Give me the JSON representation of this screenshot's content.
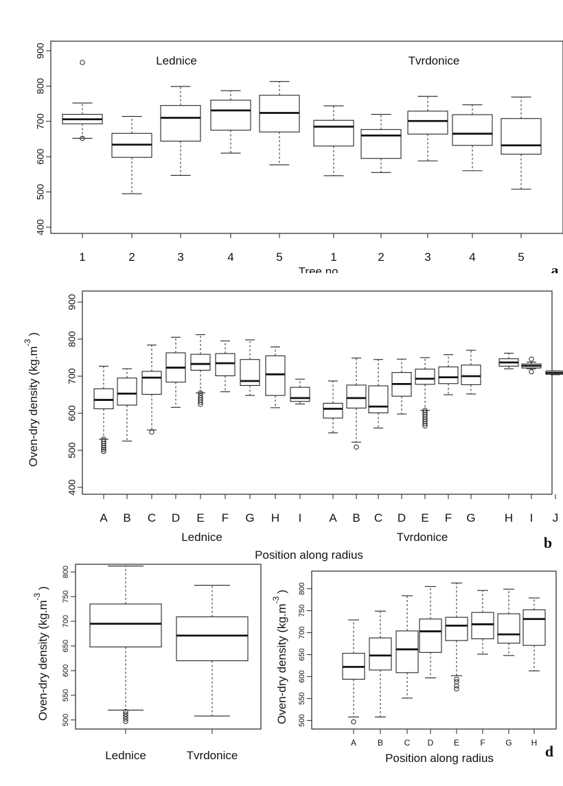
{
  "chart_data": [
    {
      "panel": "a",
      "type": "boxplot",
      "xlabel": "Tree no.",
      "ylabel": "",
      "ylim": [
        400,
        900
      ],
      "yticks": [
        400,
        500,
        600,
        700,
        800,
        900
      ],
      "group_labels": [
        "Lednice",
        "Tvrdonice"
      ],
      "categories": [
        "1",
        "2",
        "3",
        "4",
        "5",
        "1",
        "2",
        "3",
        "4",
        "5"
      ],
      "boxes": [
        {
          "whislo": 652,
          "q1": 693,
          "med": 706,
          "q3": 720,
          "whishi": 752,
          "fliers": [
            652,
            867
          ]
        },
        {
          "whislo": 495,
          "q1": 598,
          "med": 634,
          "q3": 666,
          "whishi": 714,
          "fliers": []
        },
        {
          "whislo": 547,
          "q1": 644,
          "med": 710,
          "q3": 745,
          "whishi": 799,
          "fliers": []
        },
        {
          "whislo": 610,
          "q1": 675,
          "med": 731,
          "q3": 760,
          "whishi": 787,
          "fliers": []
        },
        {
          "whislo": 577,
          "q1": 670,
          "med": 724,
          "q3": 774,
          "whishi": 813,
          "fliers": []
        },
        {
          "whislo": 546,
          "q1": 630,
          "med": 685,
          "q3": 703,
          "whishi": 744,
          "fliers": []
        },
        {
          "whislo": 555,
          "q1": 595,
          "med": 660,
          "q3": 677,
          "whishi": 720,
          "fliers": []
        },
        {
          "whislo": 588,
          "q1": 664,
          "med": 701,
          "q3": 729,
          "whishi": 771,
          "fliers": []
        },
        {
          "whislo": 560,
          "q1": 632,
          "med": 665,
          "q3": 719,
          "whishi": 747,
          "fliers": []
        },
        {
          "whislo": 508,
          "q1": 607,
          "med": 632,
          "q3": 708,
          "whishi": 769,
          "fliers": []
        }
      ],
      "panel_label": "a"
    },
    {
      "panel": "b",
      "type": "boxplot",
      "xlabel": "Position along radius",
      "ylabel_main": "Oven-dry density (kg.m",
      "ylabel_sup": "-3",
      "ylabel_end": ")",
      "ylim": [
        400,
        900
      ],
      "yticks": [
        400,
        500,
        600,
        700,
        800,
        900
      ],
      "group_labels": [
        "Lednice",
        "Tvrdonice"
      ],
      "categories": [
        "A",
        "B",
        "C",
        "D",
        "E",
        "F",
        "G",
        "H",
        "I",
        "A",
        "B",
        "C",
        "D",
        "E",
        "F",
        "G",
        "H",
        "I",
        "J"
      ],
      "boxes": [
        {
          "whislo": 530,
          "q1": 612,
          "med": 636,
          "q3": 666,
          "whishi": 727,
          "fliers": [
            497,
            502,
            507,
            512,
            518,
            524,
            530
          ]
        },
        {
          "whislo": 525,
          "q1": 622,
          "med": 653,
          "q3": 695,
          "whishi": 720,
          "fliers": []
        },
        {
          "whislo": 555,
          "q1": 651,
          "med": 696,
          "q3": 713,
          "whishi": 784,
          "fliers": [
            549
          ]
        },
        {
          "whislo": 616,
          "q1": 684,
          "med": 723,
          "q3": 763,
          "whishi": 805,
          "fliers": []
        },
        {
          "whislo": 655,
          "q1": 716,
          "med": 733,
          "q3": 759,
          "whishi": 812,
          "fliers": [
            624,
            630,
            636,
            642,
            648,
            655
          ]
        },
        {
          "whislo": 658,
          "q1": 701,
          "med": 735,
          "q3": 761,
          "whishi": 795,
          "fliers": []
        },
        {
          "whislo": 648,
          "q1": 675,
          "med": 687,
          "q3": 745,
          "whishi": 798,
          "fliers": []
        },
        {
          "whislo": 615,
          "q1": 648,
          "med": 705,
          "q3": 755,
          "whishi": 779,
          "fliers": []
        },
        {
          "whislo": 625,
          "q1": 632,
          "med": 641,
          "q3": 670,
          "whishi": 692,
          "fliers": []
        },
        {
          "whislo": 547,
          "q1": 587,
          "med": 612,
          "q3": 627,
          "whishi": 687,
          "fliers": []
        },
        {
          "whislo": 522,
          "q1": 614,
          "med": 641,
          "q3": 676,
          "whishi": 749,
          "fliers": [
            509
          ]
        },
        {
          "whislo": 560,
          "q1": 601,
          "med": 618,
          "q3": 674,
          "whishi": 745,
          "fliers": []
        },
        {
          "whislo": 598,
          "q1": 646,
          "med": 679,
          "q3": 710,
          "whishi": 746,
          "fliers": []
        },
        {
          "whislo": 608,
          "q1": 678,
          "med": 693,
          "q3": 719,
          "whishi": 750,
          "fliers": [
            566,
            572,
            578,
            584,
            590,
            596,
            602,
            608
          ]
        },
        {
          "whislo": 650,
          "q1": 680,
          "med": 697,
          "q3": 725,
          "whishi": 758,
          "fliers": []
        },
        {
          "whislo": 652,
          "q1": 677,
          "med": 700,
          "q3": 730,
          "whishi": 770,
          "fliers": []
        },
        {
          "whislo": 720,
          "q1": 727,
          "med": 737,
          "q3": 747,
          "whishi": 762,
          "fliers": []
        },
        {
          "whislo": 720,
          "q1": 722,
          "med": 728,
          "q3": 733,
          "whishi": 738,
          "fliers": [
            712,
            746
          ]
        },
        {
          "whislo": 704,
          "q1": 705,
          "med": 709,
          "q3": 714,
          "whishi": 714,
          "fliers": []
        }
      ],
      "panel_label": "b"
    },
    {
      "panel": "c",
      "type": "boxplot",
      "xlabel": "",
      "ylabel_main": "Oven-dry density (kg.m",
      "ylabel_sup": "-3",
      "ylabel_end": ")",
      "ylim": [
        490,
        810
      ],
      "yticks": [
        500,
        550,
        600,
        650,
        700,
        750,
        800
      ],
      "categories": [
        "Lednice",
        "Tvrdonice"
      ],
      "boxes": [
        {
          "whislo": 520,
          "q1": 648,
          "med": 695,
          "q3": 735,
          "whishi": 812,
          "fliers": [
            497,
            502,
            507,
            512,
            517
          ]
        },
        {
          "whislo": 508,
          "q1": 620,
          "med": 671,
          "q3": 709,
          "whishi": 773,
          "fliers": []
        }
      ],
      "panel_label": "c"
    },
    {
      "panel": "d",
      "type": "boxplot",
      "xlabel": "Position along radius",
      "ylabel_main": "Oven-dry density (kg.m",
      "ylabel_sup": "-3",
      "ylabel_end": ")",
      "ylim": [
        490,
        815
      ],
      "yticks": [
        500,
        550,
        600,
        650,
        700,
        750,
        800
      ],
      "categories": [
        "A",
        "B",
        "C",
        "D",
        "E",
        "F",
        "G",
        "H"
      ],
      "boxes": [
        {
          "whislo": 508,
          "q1": 594,
          "med": 622,
          "q3": 653,
          "whishi": 729,
          "fliers": [
            497
          ]
        },
        {
          "whislo": 508,
          "q1": 615,
          "med": 648,
          "q3": 688,
          "whishi": 749,
          "fliers": []
        },
        {
          "whislo": 551,
          "q1": 609,
          "med": 662,
          "q3": 704,
          "whishi": 784,
          "fliers": []
        },
        {
          "whislo": 597,
          "q1": 655,
          "med": 703,
          "q3": 731,
          "whishi": 805,
          "fliers": []
        },
        {
          "whislo": 602,
          "q1": 682,
          "med": 716,
          "q3": 735,
          "whishi": 813,
          "fliers": [
            572,
            579,
            588,
            594
          ]
        },
        {
          "whislo": 651,
          "q1": 686,
          "med": 719,
          "q3": 746,
          "whishi": 796,
          "fliers": []
        },
        {
          "whislo": 648,
          "q1": 676,
          "med": 696,
          "q3": 743,
          "whishi": 799,
          "fliers": []
        },
        {
          "whislo": 613,
          "q1": 671,
          "med": 731,
          "q3": 752,
          "whishi": 779,
          "fliers": []
        }
      ],
      "panel_label": "d"
    }
  ]
}
